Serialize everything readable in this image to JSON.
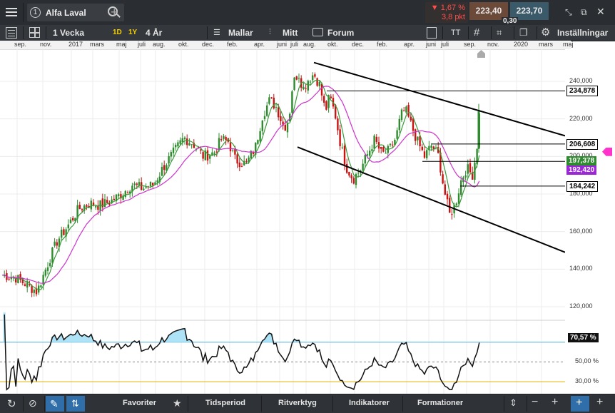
{
  "header": {
    "tab_number": "1",
    "instrument": "Alfa Laval",
    "change_percent": "▼ 1,67 %",
    "change_points": "3,8 pkt",
    "bid": "223,40",
    "ask": "223,70",
    "spread": "0,30"
  },
  "toolbar": {
    "period": "1 Vecka",
    "range_1d": "1D",
    "range_1y": "1Y",
    "range_4y": "4 År",
    "templates": "Mallar",
    "my": "Mitt",
    "forum": "Forum",
    "text_tool": "TT",
    "settings": "Inställningar"
  },
  "time_axis": [
    "sep.",
    "nov.",
    "2017",
    "mars",
    "maj",
    "juli",
    "aug.",
    "okt.",
    "dec.",
    "feb.",
    "apr.",
    "juni",
    "juli",
    "aug.",
    "okt.",
    "dec.",
    "feb.",
    "apr.",
    "juni",
    "juli",
    "sep.",
    "nov.",
    "2020",
    "mars",
    "maj"
  ],
  "price_axis": [
    "240,000",
    "220,000",
    "200,000",
    "180,000",
    "160,000",
    "140,000",
    "120,000"
  ],
  "price_tags": [
    {
      "label": "234,878",
      "value": 234.878,
      "bg": "#ffffff",
      "fg": "#000000"
    },
    {
      "label": "206,608",
      "value": 206.608,
      "bg": "#ffffff",
      "fg": "#000000"
    },
    {
      "label": "197,378",
      "value": 197.378,
      "bg": "#2e8b2e",
      "fg": "#ffffff"
    },
    {
      "label": "192,420",
      "value": 192.42,
      "bg": "#9b26d6",
      "fg": "#ffffff"
    },
    {
      "label": "184,242",
      "value": 184.242,
      "bg": "#ffffff",
      "fg": "#000000"
    }
  ],
  "rsi": {
    "current": "70,57 %",
    "current_value": 70.57,
    "levels": [
      "50,00 %",
      "30,00 %"
    ]
  },
  "bottombar": {
    "favorites": "Favoriter",
    "period": "Tidsperiod",
    "draw_tools": "Ritverktyg",
    "indicators": "Indikatorer",
    "formations": "Formationer"
  },
  "colors": {
    "up": "#2e8b2e",
    "down": "#cc1111",
    "ma_short": "#3a9a3a",
    "ma_long": "#cc33cc",
    "accent_red": "#ff4d4d",
    "bid_bg": "#6b4a3a",
    "ask_bg": "#3a5a6a"
  }
}
